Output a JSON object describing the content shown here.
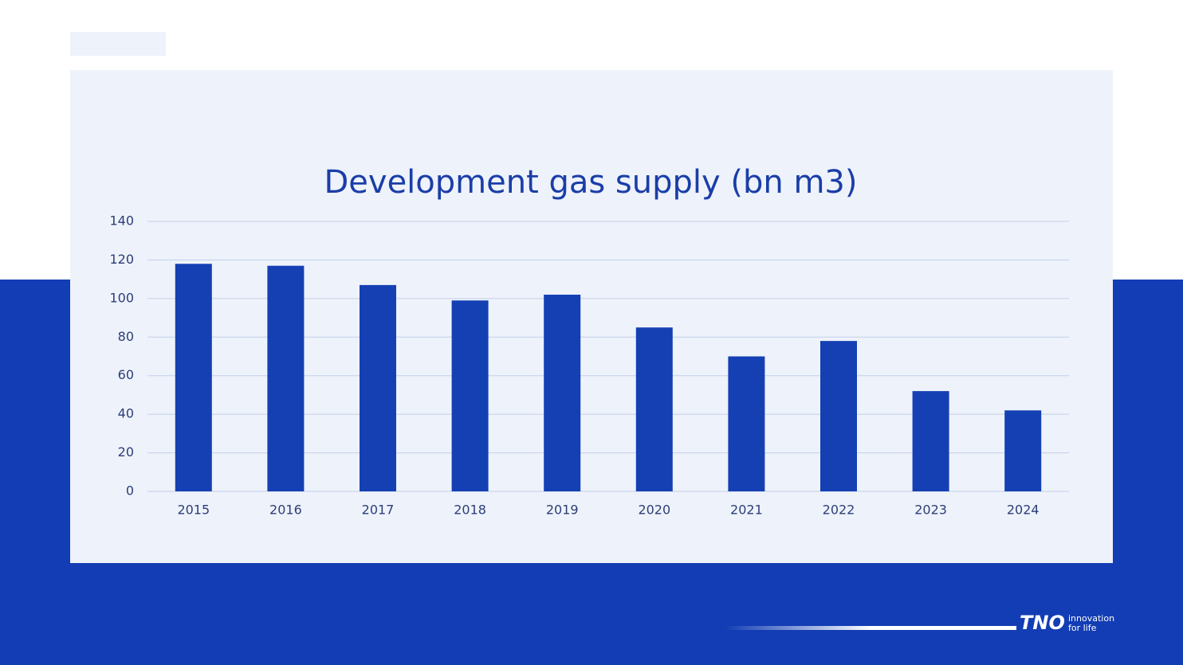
{
  "chart_data": {
    "type": "bar",
    "title": "Development gas supply (bn m3)",
    "categories": [
      "2015",
      "2016",
      "2017",
      "2018",
      "2019",
      "2020",
      "2021",
      "2022",
      "2023",
      "2024"
    ],
    "values": [
      118,
      117,
      107,
      99,
      102,
      85,
      70,
      78,
      52,
      42
    ],
    "color": "#1440b4",
    "ylim": [
      0,
      140
    ],
    "yticks": [
      0,
      20,
      40,
      60,
      80,
      100,
      120,
      140
    ],
    "grid": true
  },
  "logo": {
    "name": "TNO",
    "tagline_1": "innovation",
    "tagline_2": "for life"
  }
}
